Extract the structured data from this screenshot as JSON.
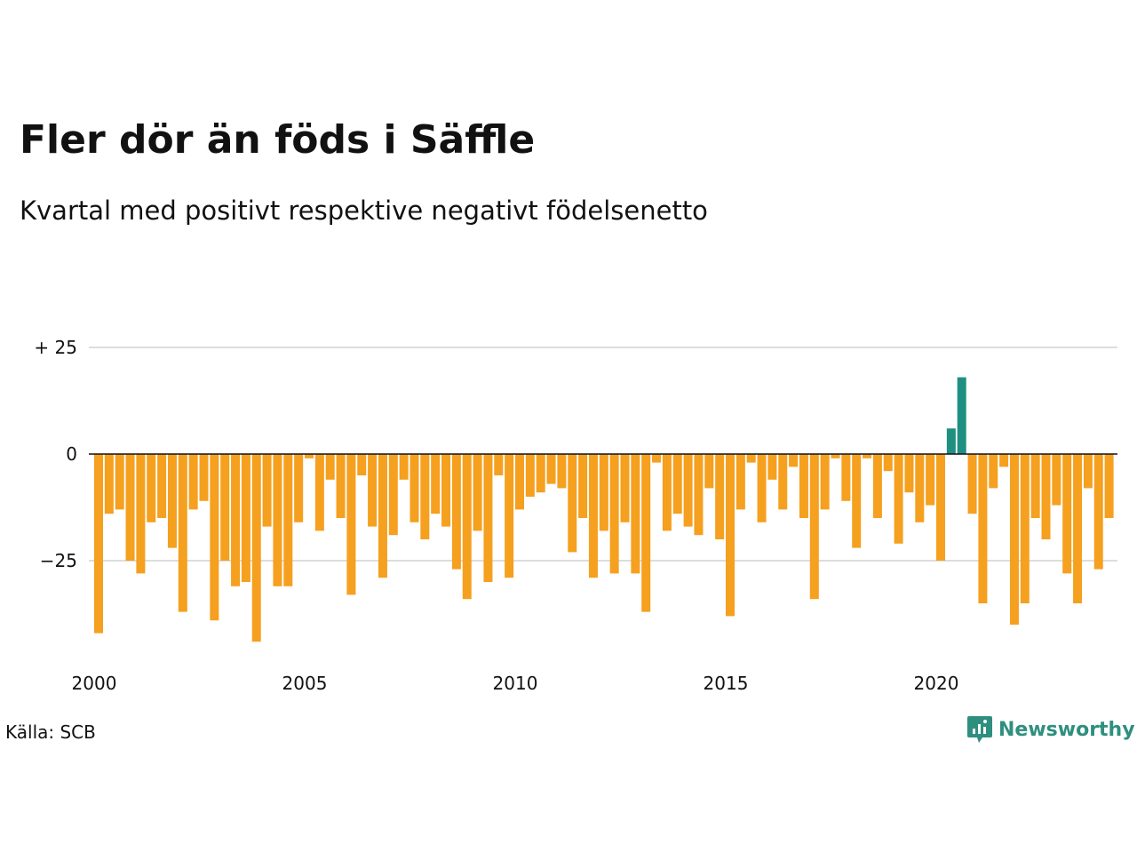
{
  "title": "Fler dör än föds i Säffle",
  "subtitle": "Kvartal med positivt respektive negativt födelsenetto",
  "source": "Källa: SCB",
  "brand": "Newsworthy",
  "colors": {
    "negative": "#f5a01f",
    "positive": "#1e8f80",
    "grid": "#dddddd",
    "axis": "#111111",
    "brand": "#2f8f7f"
  },
  "chart_data": {
    "type": "bar",
    "x_tick_labels": [
      "2000",
      "2005",
      "2010",
      "2015",
      "2020"
    ],
    "y_tick_labels": [
      "+ 25",
      "0",
      "−25"
    ],
    "y_ticks": [
      25,
      0,
      -25
    ],
    "ylim": [
      -45,
      28
    ],
    "x_start_year": 2000,
    "values": [
      -42,
      -14,
      -13,
      -25,
      -28,
      -16,
      -15,
      -22,
      -37,
      -13,
      -11,
      -39,
      -25,
      -31,
      -30,
      -44,
      -17,
      -31,
      -31,
      -16,
      -1,
      -18,
      -6,
      -15,
      -33,
      -5,
      -17,
      -29,
      -19,
      -6,
      -16,
      -20,
      -14,
      -17,
      -27,
      -34,
      -18,
      -30,
      -5,
      -29,
      -13,
      -10,
      -9,
      -7,
      -8,
      -23,
      -15,
      -29,
      -18,
      -28,
      -16,
      -28,
      -37,
      -2,
      -18,
      -14,
      -17,
      -19,
      -8,
      -20,
      -38,
      -13,
      -2,
      -16,
      -6,
      -13,
      -3,
      -15,
      -34,
      -13,
      -1,
      -11,
      -22,
      -1,
      -15,
      -4,
      -21,
      -9,
      -16,
      -12,
      -25,
      6,
      18,
      -14,
      -35,
      -8,
      -3,
      -40,
      -35,
      -15,
      -20,
      -12,
      -28,
      -35,
      -8,
      -27,
      -15
    ]
  }
}
